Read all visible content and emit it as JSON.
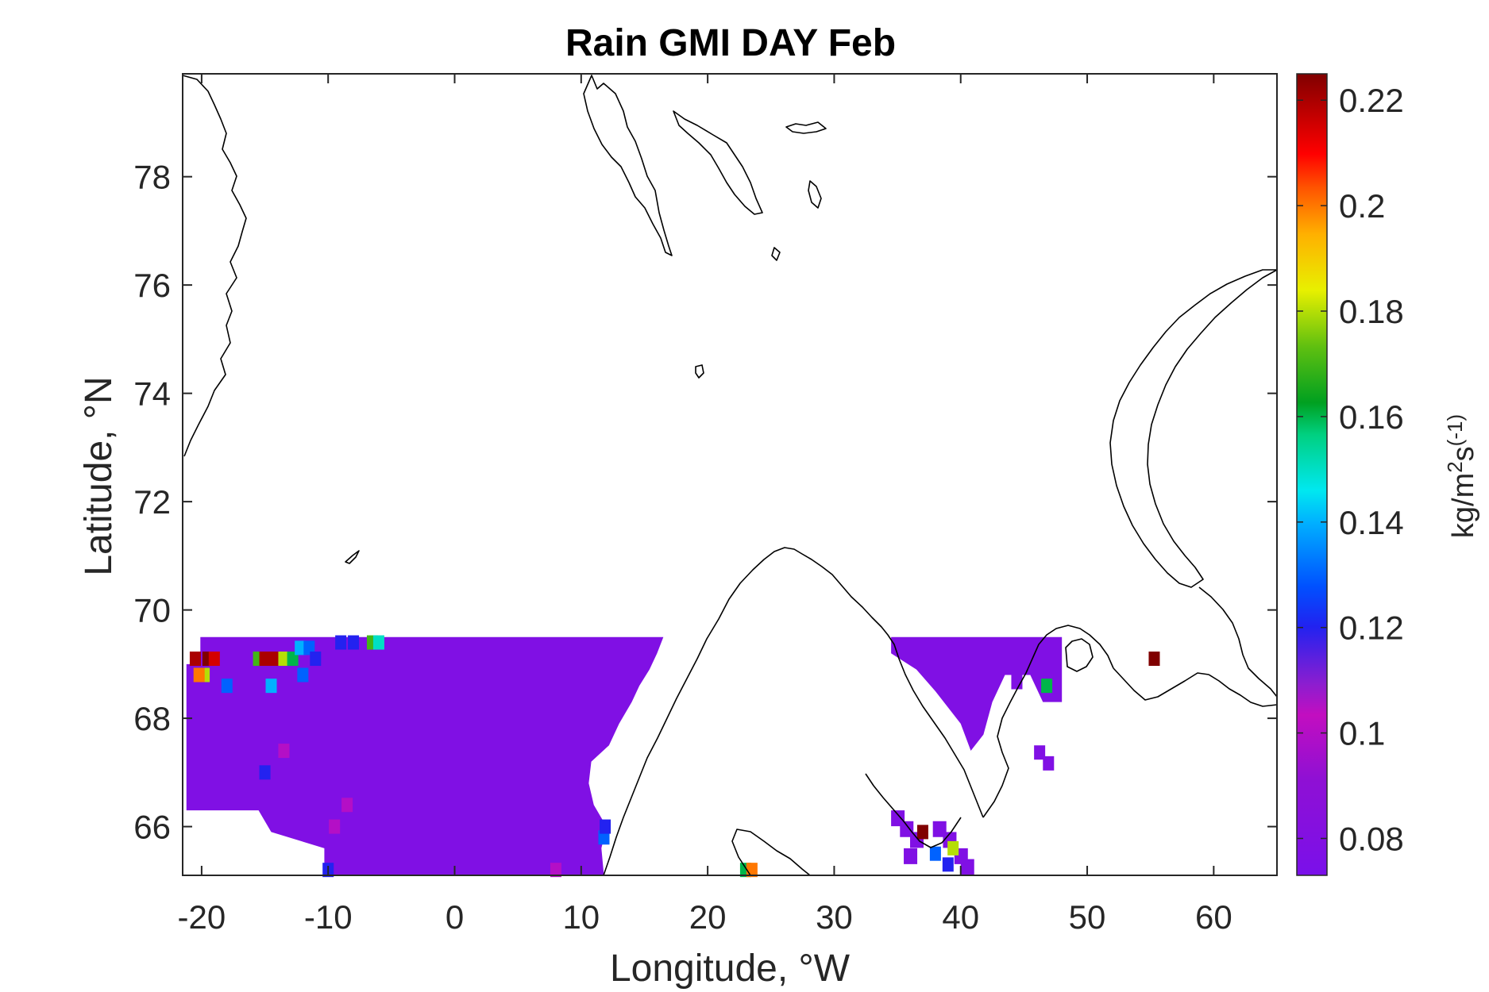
{
  "chart_data": {
    "type": "heatmap",
    "title": "Rain GMI DAY Feb",
    "xlabel": "Longitude, °W",
    "ylabel": "Latitude, °N",
    "xlim": [
      -21.5,
      65
    ],
    "ylim": [
      65.1,
      79.9
    ],
    "x_ticks": [
      -20,
      -10,
      0,
      10,
      20,
      30,
      40,
      50,
      60
    ],
    "x_tick_labels": [
      "-20",
      "-10",
      "0",
      "10",
      "20",
      "30",
      "40",
      "50",
      "60"
    ],
    "y_ticks": [
      66,
      68,
      70,
      72,
      74,
      76,
      78
    ],
    "y_tick_labels": [
      "66",
      "68",
      "70",
      "72",
      "74",
      "76",
      "78"
    ],
    "colorbar": {
      "label_main": "kg/m",
      "label_sup": "2",
      "label_after": "s",
      "label_tail": "(-1)",
      "range": [
        0.073,
        0.225
      ],
      "colormap": "jet-like (purple → blue → cyan → green → yellow → red → dark red)",
      "ticks": [
        0.08,
        0.1,
        0.12,
        0.14,
        0.16,
        0.18,
        0.2,
        0.22
      ],
      "tick_labels": [
        "0.08",
        "0.1",
        "0.12",
        "0.14",
        "0.16",
        "0.18",
        "0.2",
        "0.22"
      ]
    },
    "grid": false,
    "base_value": 0.078,
    "regions": [
      {
        "name": "norwegian-sea-field",
        "lon_range": [
          -21,
          16.5
        ],
        "lat_range": [
          65.1,
          69.5
        ],
        "value": 0.078
      },
      {
        "name": "barents-white-sea-field",
        "lon_range": [
          34.5,
          48
        ],
        "lat_range": [
          67.5,
          69.5
        ],
        "value": 0.078
      }
    ],
    "hotspots": [
      {
        "lon": -20.5,
        "lat": 69.1,
        "value": 0.22
      },
      {
        "lon": -19.5,
        "lat": 69.1,
        "value": 0.225
      },
      {
        "lon": -19.0,
        "lat": 69.1,
        "value": 0.215
      },
      {
        "lon": -19.8,
        "lat": 68.8,
        "value": 0.18
      },
      {
        "lon": -20.2,
        "lat": 68.8,
        "value": 0.2
      },
      {
        "lon": -18.0,
        "lat": 68.6,
        "value": 0.13
      },
      {
        "lon": -15.5,
        "lat": 69.1,
        "value": 0.17
      },
      {
        "lon": -15.0,
        "lat": 69.1,
        "value": 0.22
      },
      {
        "lon": -14.2,
        "lat": 69.1,
        "value": 0.22
      },
      {
        "lon": -13.5,
        "lat": 69.1,
        "value": 0.18
      },
      {
        "lon": -12.8,
        "lat": 69.1,
        "value": 0.16
      },
      {
        "lon": -12.2,
        "lat": 69.3,
        "value": 0.14
      },
      {
        "lon": -11.5,
        "lat": 69.3,
        "value": 0.13
      },
      {
        "lon": -11.0,
        "lat": 69.1,
        "value": 0.12
      },
      {
        "lon": -14.5,
        "lat": 68.6,
        "value": 0.14
      },
      {
        "lon": -12.0,
        "lat": 68.8,
        "value": 0.13
      },
      {
        "lon": -9.0,
        "lat": 69.4,
        "value": 0.12
      },
      {
        "lon": -8.0,
        "lat": 69.4,
        "value": 0.12
      },
      {
        "lon": -6.5,
        "lat": 69.4,
        "value": 0.17
      },
      {
        "lon": -6.0,
        "lat": 69.4,
        "value": 0.15
      },
      {
        "lon": -15.0,
        "lat": 67.0,
        "value": 0.12
      },
      {
        "lon": -13.5,
        "lat": 67.4,
        "value": 0.1
      },
      {
        "lon": -8.5,
        "lat": 66.4,
        "value": 0.1
      },
      {
        "lon": -9.5,
        "lat": 66.0,
        "value": 0.1
      },
      {
        "lon": -10.0,
        "lat": 65.2,
        "value": 0.12
      },
      {
        "lon": 8.0,
        "lat": 65.2,
        "value": 0.1
      },
      {
        "lon": 11.8,
        "lat": 65.8,
        "value": 0.13
      },
      {
        "lon": 11.9,
        "lat": 66.0,
        "value": 0.12
      },
      {
        "lon": 23.0,
        "lat": 65.2,
        "value": 0.16
      },
      {
        "lon": 23.5,
        "lat": 65.2,
        "value": 0.2
      },
      {
        "lon": 37.0,
        "lat": 65.9,
        "value": 0.225
      },
      {
        "lon": 38.0,
        "lat": 65.5,
        "value": 0.13
      },
      {
        "lon": 39.0,
        "lat": 65.3,
        "value": 0.12
      },
      {
        "lon": 39.4,
        "lat": 65.6,
        "value": 0.18
      },
      {
        "lon": 46.8,
        "lat": 68.6,
        "value": 0.16
      },
      {
        "lon": 55.3,
        "lat": 69.1,
        "value": 0.225
      }
    ]
  }
}
